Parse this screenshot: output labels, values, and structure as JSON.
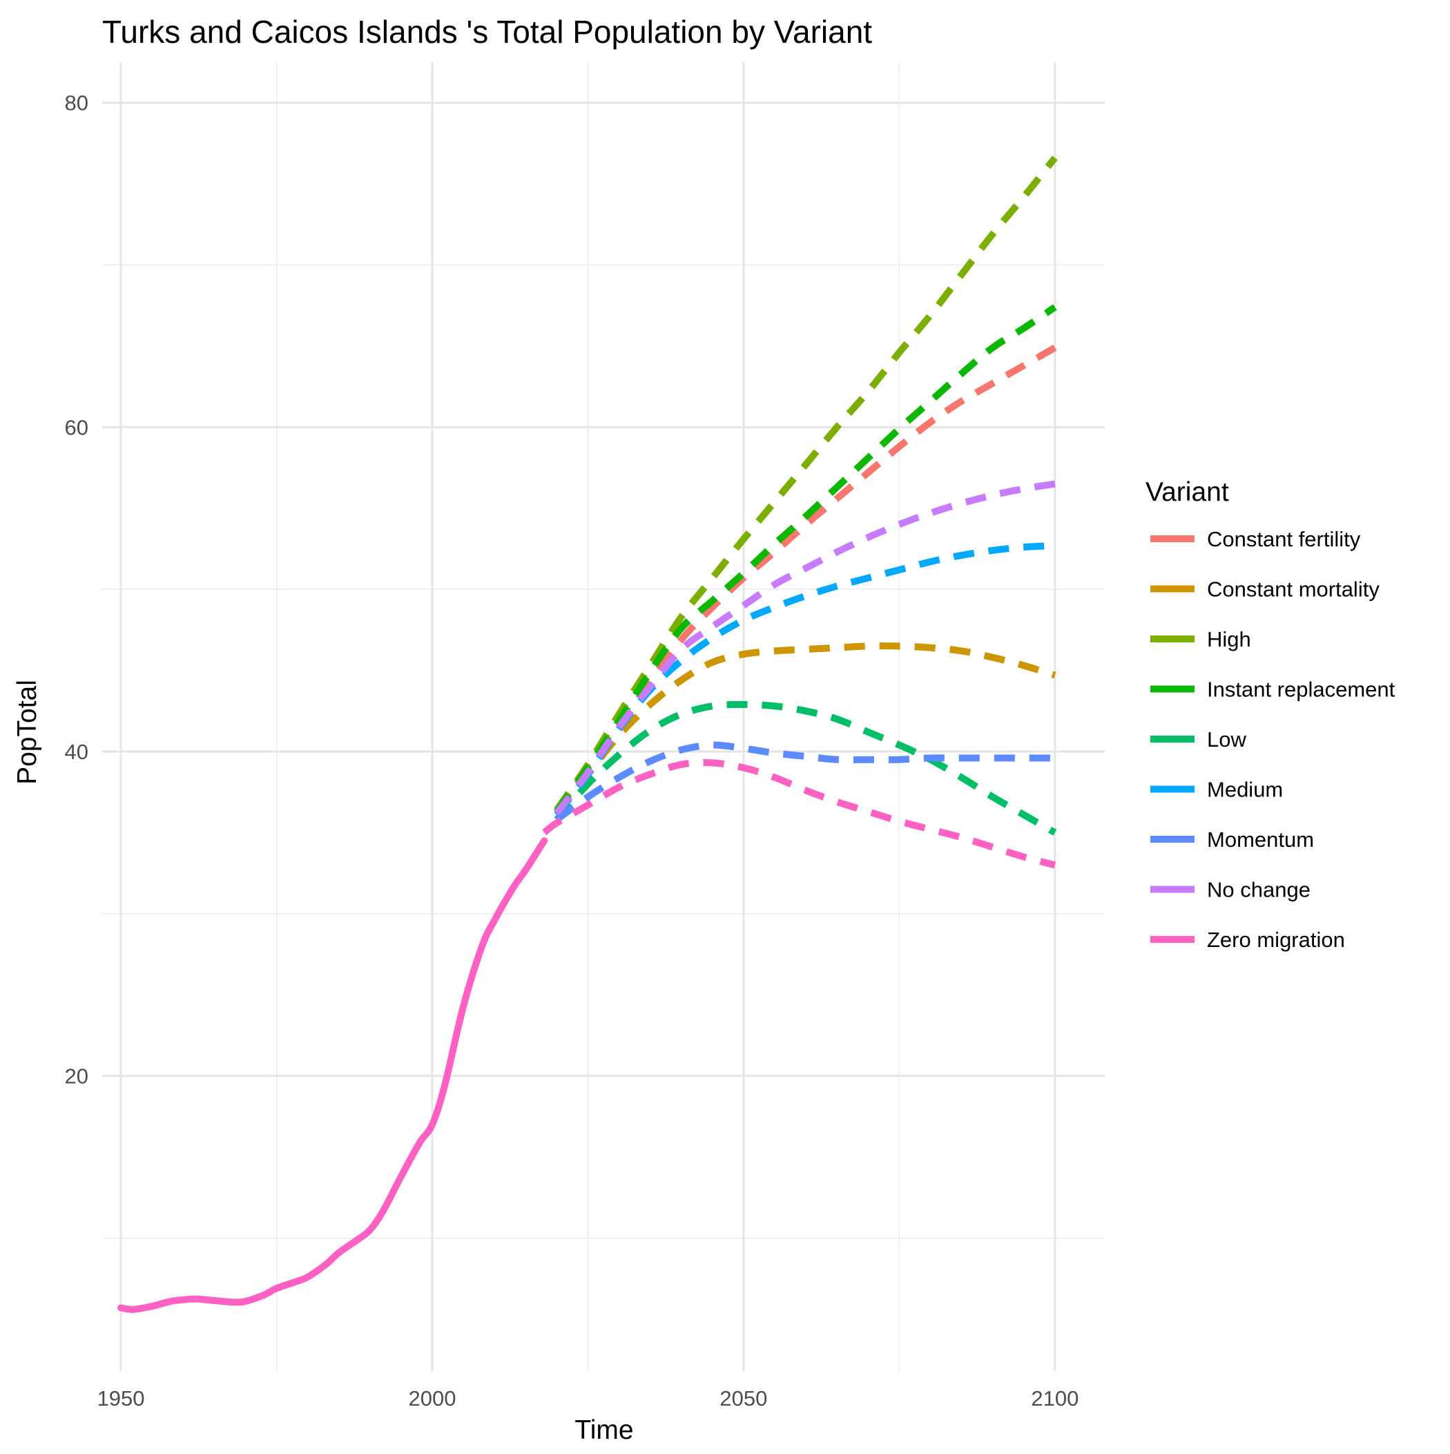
{
  "chart_data": {
    "type": "line",
    "title": "Turks and Caicos Islands 's Total Population by Variant",
    "xlabel": "Time",
    "ylabel": "PopTotal",
    "xlim": [
      1947,
      2108
    ],
    "ylim": [
      1.8,
      82.5
    ],
    "x_ticks": [
      1950,
      2000,
      2050,
      2100
    ],
    "x_tick_labels": [
      "1950",
      "2000",
      "2050",
      "2100"
    ],
    "y_ticks": [
      20,
      40,
      60,
      80
    ],
    "y_tick_labels": [
      "20",
      "40",
      "60",
      "80"
    ],
    "x_minor_ticks": [
      1975,
      2025,
      2075
    ],
    "y_minor_ticks": [
      10,
      30,
      50,
      70
    ],
    "grid": true,
    "legend": {
      "title": "Variant",
      "position": "right"
    },
    "series": [
      {
        "name": "Constant fertility",
        "color": "#F8766D",
        "dashed": true,
        "x": [
          2020,
          2025,
          2030,
          2035,
          2040,
          2045,
          2050,
          2055,
          2060,
          2065,
          2070,
          2075,
          2080,
          2085,
          2090,
          2095,
          2100
        ],
        "y": [
          36.2,
          38.8,
          41.5,
          44.3,
          46.9,
          48.9,
          50.7,
          52.3,
          54.0,
          55.6,
          57.2,
          58.8,
          60.3,
          61.6,
          62.7,
          63.8,
          64.9
        ]
      },
      {
        "name": "Constant mortality",
        "color": "#CD9600",
        "dashed": true,
        "x": [
          2020,
          2025,
          2030,
          2035,
          2040,
          2045,
          2050,
          2055,
          2060,
          2065,
          2070,
          2075,
          2080,
          2085,
          2090,
          2095,
          2100
        ],
        "y": [
          36.2,
          38.6,
          41.0,
          42.9,
          44.4,
          45.5,
          46.0,
          46.2,
          46.3,
          46.4,
          46.5,
          46.5,
          46.4,
          46.2,
          45.8,
          45.3,
          44.7
        ]
      },
      {
        "name": "High",
        "color": "#7CAE00",
        "dashed": true,
        "x": [
          2020,
          2025,
          2030,
          2035,
          2040,
          2045,
          2050,
          2055,
          2060,
          2065,
          2070,
          2075,
          2080,
          2085,
          2090,
          2095,
          2100
        ],
        "y": [
          36.4,
          39.2,
          42.3,
          45.3,
          48.3,
          50.7,
          53.1,
          55.4,
          57.7,
          60.0,
          62.2,
          64.6,
          66.9,
          69.4,
          71.9,
          74.2,
          76.6
        ]
      },
      {
        "name": "Instant replacement",
        "color": "#0CB702",
        "dashed": true,
        "x": [
          2020,
          2025,
          2030,
          2035,
          2040,
          2045,
          2050,
          2055,
          2060,
          2065,
          2070,
          2075,
          2080,
          2085,
          2090,
          2095,
          2100
        ],
        "y": [
          36.3,
          39.0,
          41.9,
          44.9,
          47.6,
          49.3,
          51.0,
          52.8,
          54.5,
          56.3,
          58.1,
          59.9,
          61.6,
          63.3,
          64.9,
          66.1,
          67.4
        ]
      },
      {
        "name": "Low",
        "color": "#00BE67",
        "dashed": true,
        "x": [
          2020,
          2025,
          2030,
          2035,
          2040,
          2045,
          2050,
          2055,
          2060,
          2065,
          2070,
          2075,
          2080,
          2085,
          2090,
          2095,
          2100
        ],
        "y": [
          35.8,
          38.0,
          39.8,
          41.3,
          42.3,
          42.8,
          42.9,
          42.8,
          42.5,
          42.0,
          41.2,
          40.4,
          39.5,
          38.4,
          37.2,
          36.1,
          35.0
        ]
      },
      {
        "name": "Medium",
        "color": "#00A9FF",
        "dashed": true,
        "x": [
          2020,
          2025,
          2030,
          2035,
          2040,
          2045,
          2050,
          2055,
          2060,
          2065,
          2070,
          2075,
          2080,
          2085,
          2090,
          2095,
          2100
        ],
        "y": [
          36.1,
          38.6,
          41.4,
          43.8,
          45.6,
          47.0,
          48.1,
          48.9,
          49.6,
          50.2,
          50.7,
          51.2,
          51.7,
          52.1,
          52.4,
          52.6,
          52.7
        ]
      },
      {
        "name": "Momentum",
        "color": "#5B8BFF",
        "dashed": true,
        "x": [
          2020,
          2025,
          2030,
          2035,
          2040,
          2045,
          2050,
          2055,
          2060,
          2065,
          2070,
          2075,
          2080,
          2085,
          2090,
          2095,
          2100
        ],
        "y": [
          35.8,
          37.2,
          38.4,
          39.4,
          40.1,
          40.4,
          40.2,
          39.9,
          39.7,
          39.5,
          39.5,
          39.5,
          39.6,
          39.6,
          39.6,
          39.6,
          39.6
        ]
      },
      {
        "name": "No change",
        "color": "#C77CFF",
        "dashed": true,
        "x": [
          2020,
          2025,
          2030,
          2035,
          2040,
          2045,
          2050,
          2055,
          2060,
          2065,
          2070,
          2075,
          2080,
          2085,
          2090,
          2095,
          2100
        ],
        "y": [
          36.2,
          38.7,
          41.5,
          44.0,
          46.3,
          47.7,
          49.0,
          50.3,
          51.3,
          52.3,
          53.2,
          54.0,
          54.7,
          55.3,
          55.8,
          56.2,
          56.5
        ]
      },
      {
        "name": "Zero migration",
        "color": "#FF61C3",
        "dashed": true,
        "x": [
          2018,
          2020,
          2025,
          2030,
          2035,
          2040,
          2045,
          2050,
          2055,
          2060,
          2065,
          2070,
          2075,
          2080,
          2085,
          2090,
          2095,
          2100
        ],
        "y": [
          35.0,
          35.6,
          36.7,
          37.8,
          38.6,
          39.2,
          39.3,
          39.0,
          38.4,
          37.6,
          36.9,
          36.3,
          35.7,
          35.2,
          34.7,
          34.1,
          33.5,
          33.0
        ]
      },
      {
        "name": "",
        "color": "#FF61C3",
        "dashed": false,
        "x": [
          1950,
          1952,
          1955,
          1958,
          1960,
          1962,
          1965,
          1968,
          1970,
          1973,
          1975,
          1978,
          1980,
          1983,
          1985,
          1988,
          1990,
          1992,
          1995,
          1998,
          2000,
          2002,
          2005,
          2008,
          2010,
          2013,
          2015,
          2018
        ],
        "y": [
          5.7,
          5.6,
          5.8,
          6.1,
          6.2,
          6.25,
          6.15,
          6.05,
          6.1,
          6.5,
          6.9,
          7.3,
          7.6,
          8.4,
          9.1,
          9.9,
          10.5,
          11.6,
          13.8,
          15.9,
          17.0,
          19.4,
          24.3,
          28.0,
          29.6,
          31.6,
          32.7,
          34.5
        ]
      }
    ]
  }
}
